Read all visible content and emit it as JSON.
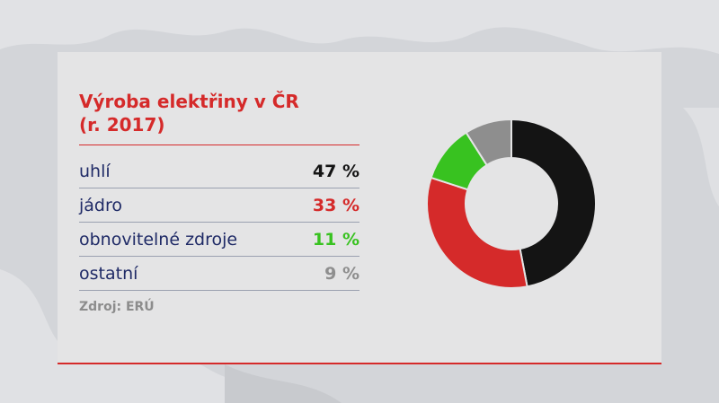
{
  "chart_data": {
    "type": "pie",
    "title": "Výroba elektřiny v ČR",
    "subtitle": "(r. 2017)",
    "categories": [
      "uhlí",
      "jádro",
      "obnovitelné zdroje",
      "ostatní"
    ],
    "values": [
      47,
      33,
      11,
      9
    ],
    "value_labels": [
      "47 %",
      "33 %",
      "11 %",
      "9 %"
    ],
    "colors": [
      "#141414",
      "#d52a2a",
      "#38c220",
      "#8e8e8e"
    ],
    "value_text_colors": [
      "#141414",
      "#d52a2a",
      "#38c220",
      "#8e8e8e"
    ],
    "donut": true,
    "source": "Zdroj: ERÚ"
  }
}
